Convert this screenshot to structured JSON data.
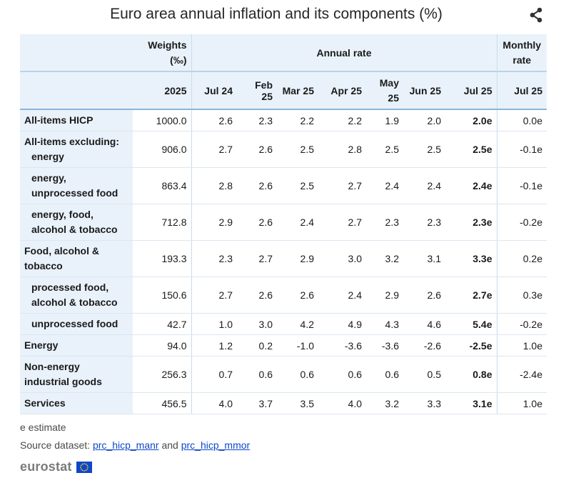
{
  "header": {
    "title": "Euro area annual inflation and its components (%)",
    "share_icon": "share-icon"
  },
  "table": {
    "weights_header": "Weights",
    "weights_unit": "(‰)",
    "annual_header": "Annual rate",
    "monthly_header_1": "Monthly",
    "monthly_header_2": "rate",
    "columns": [
      "2025",
      "Jul 24",
      "Feb 25",
      "Mar 25",
      "Apr 25",
      "May 25",
      "Jun 25",
      "Jul 25",
      "Jul 25"
    ],
    "rows": [
      {
        "label_1": "All-items HICP",
        "label_2": "",
        "indent": false,
        "values": [
          "1000.0",
          "2.6",
          "2.3",
          "2.2",
          "2.2",
          "1.9",
          "2.0",
          "2.0e",
          "0.0e"
        ]
      },
      {
        "label_1": "All-items excluding:",
        "label_2": "energy",
        "indent": false,
        "values": [
          "906.0",
          "2.7",
          "2.6",
          "2.5",
          "2.8",
          "2.5",
          "2.5",
          "2.5e",
          "-0.1e"
        ]
      },
      {
        "label_1": "energy,",
        "label_2": "unprocessed food",
        "indent": true,
        "values": [
          "863.4",
          "2.8",
          "2.6",
          "2.5",
          "2.7",
          "2.4",
          "2.4",
          "2.4e",
          "-0.1e"
        ]
      },
      {
        "label_1": "energy, food,",
        "label_2": "alcohol & tobacco",
        "indent": true,
        "values": [
          "712.8",
          "2.9",
          "2.6",
          "2.4",
          "2.7",
          "2.3",
          "2.3",
          "2.3e",
          "-0.2e"
        ]
      },
      {
        "label_1": "Food, alcohol &",
        "label_2": "tobacco",
        "indent": false,
        "values": [
          "193.3",
          "2.3",
          "2.7",
          "2.9",
          "3.0",
          "3.2",
          "3.1",
          "3.3e",
          "0.2e"
        ]
      },
      {
        "label_1": "processed food,",
        "label_2": "alcohol & tobacco",
        "indent": true,
        "values": [
          "150.6",
          "2.7",
          "2.6",
          "2.6",
          "2.4",
          "2.9",
          "2.6",
          "2.7e",
          "0.3e"
        ]
      },
      {
        "label_1": "unprocessed food",
        "label_2": "",
        "indent": true,
        "values": [
          "42.7",
          "1.0",
          "3.0",
          "4.2",
          "4.9",
          "4.3",
          "4.6",
          "5.4e",
          "-0.2e"
        ]
      },
      {
        "label_1": "Energy",
        "label_2": "",
        "indent": false,
        "values": [
          "94.0",
          "1.2",
          "0.2",
          "-1.0",
          "-3.6",
          "-3.6",
          "-2.6",
          "-2.5e",
          "1.0e"
        ]
      },
      {
        "label_1": "Non-energy",
        "label_2": "industrial goods",
        "indent": false,
        "values": [
          "256.3",
          "0.7",
          "0.6",
          "0.6",
          "0.6",
          "0.6",
          "0.5",
          "0.8e",
          "-2.4e"
        ]
      },
      {
        "label_1": "Services",
        "label_2": "",
        "indent": false,
        "values": [
          "456.5",
          "4.0",
          "3.7",
          "3.5",
          "4.0",
          "3.2",
          "3.3",
          "3.1e",
          "1.0e"
        ]
      }
    ]
  },
  "footer": {
    "estimate_note": "e estimate",
    "source_prefix": "Source dataset:",
    "link_1": "prc_hicp_manr",
    "conjunction": "and",
    "link_2": "prc_hicp_mmor",
    "logo_text": "eurostat"
  },
  "colors": {
    "header_bg": "#e9f2fa",
    "link": "#0e47cb",
    "eu_blue": "#0e47cb",
    "eu_star": "#ffd617"
  },
  "chart_data": {
    "type": "table",
    "title": "Euro area annual inflation and its components (%)",
    "columns": [
      "Weights (‰) 2025",
      "Annual rate Jul 24",
      "Annual rate Feb 25",
      "Annual rate Mar 25",
      "Annual rate Apr 25",
      "Annual rate May 25",
      "Annual rate Jun 25",
      "Annual rate Jul 25",
      "Monthly rate Jul 25"
    ],
    "rows": [
      {
        "name": "All-items HICP",
        "values": [
          1000.0,
          2.6,
          2.3,
          2.2,
          2.2,
          1.9,
          2.0,
          2.0,
          0.0
        ]
      },
      {
        "name": "All-items excluding: energy",
        "values": [
          906.0,
          2.7,
          2.6,
          2.5,
          2.8,
          2.5,
          2.5,
          2.5,
          -0.1
        ]
      },
      {
        "name": "energy, unprocessed food",
        "values": [
          863.4,
          2.8,
          2.6,
          2.5,
          2.7,
          2.4,
          2.4,
          2.4,
          -0.1
        ]
      },
      {
        "name": "energy, food, alcohol & tobacco",
        "values": [
          712.8,
          2.9,
          2.6,
          2.4,
          2.7,
          2.3,
          2.3,
          2.3,
          -0.2
        ]
      },
      {
        "name": "Food, alcohol & tobacco",
        "values": [
          193.3,
          2.3,
          2.7,
          2.9,
          3.0,
          3.2,
          3.1,
          3.3,
          0.2
        ]
      },
      {
        "name": "processed food, alcohol & tobacco",
        "values": [
          150.6,
          2.7,
          2.6,
          2.6,
          2.4,
          2.9,
          2.6,
          2.7,
          0.3
        ]
      },
      {
        "name": "unprocessed food",
        "values": [
          42.7,
          1.0,
          3.0,
          4.2,
          4.9,
          4.3,
          4.6,
          5.4,
          -0.2
        ]
      },
      {
        "name": "Energy",
        "values": [
          94.0,
          1.2,
          0.2,
          -1.0,
          -3.6,
          -3.6,
          -2.6,
          -2.5,
          1.0
        ]
      },
      {
        "name": "Non-energy industrial goods",
        "values": [
          256.3,
          0.7,
          0.6,
          0.6,
          0.6,
          0.6,
          0.5,
          0.8,
          -2.4
        ]
      },
      {
        "name": "Services",
        "values": [
          456.5,
          4.0,
          3.7,
          3.5,
          4.0,
          3.2,
          3.3,
          3.1,
          1.0
        ]
      }
    ]
  }
}
